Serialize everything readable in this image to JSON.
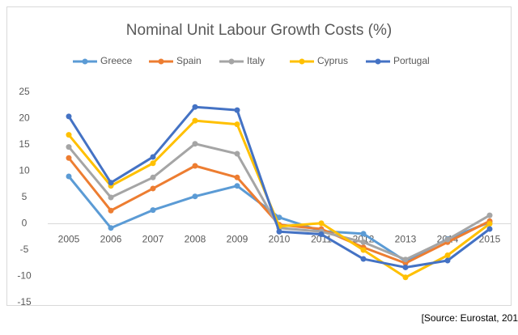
{
  "chart_data": {
    "type": "line",
    "title": "Nominal Unit Labour Growth Costs (%)",
    "source": "[Source: Eurostat, 201",
    "categories": [
      "2005",
      "2006",
      "2007",
      "2008",
      "2009",
      "2010",
      "2011",
      "2012",
      "2013",
      "2014",
      "2015"
    ],
    "series": [
      {
        "name": "Greece",
        "color": "#5b9bd5",
        "values": [
          9,
          -0.8,
          2.6,
          5.2,
          7.2,
          1.2,
          -1.4,
          -1.9,
          -7.1,
          -2.9,
          0.3
        ]
      },
      {
        "name": "Spain",
        "color": "#ed7d31",
        "values": [
          12.5,
          2.5,
          6.7,
          11,
          8.8,
          -0.2,
          -1,
          -4.5,
          -7.5,
          -3.5,
          0.5
        ]
      },
      {
        "name": "Italy",
        "color": "#a5a5a5",
        "values": [
          14.6,
          5,
          8.8,
          15.2,
          13.3,
          -0.8,
          -1.5,
          -3.5,
          -6.8,
          -3,
          1.6
        ]
      },
      {
        "name": "Cyprus",
        "color": "#ffc000",
        "values": [
          16.9,
          7.2,
          11.5,
          19.6,
          18.9,
          -0.5,
          0.1,
          -5,
          -10.2,
          -6,
          0
        ]
      },
      {
        "name": "Portugal",
        "color": "#4472c4",
        "values": [
          20.4,
          7.8,
          12.7,
          22.2,
          21.6,
          -1.5,
          -2,
          -6.7,
          -8.3,
          -7,
          -1
        ]
      }
    ],
    "ylim": [
      -15,
      25
    ],
    "yticks": [
      -15,
      -10,
      -5,
      0,
      5,
      10,
      15,
      20,
      25
    ],
    "grid": false,
    "legend": "top"
  }
}
